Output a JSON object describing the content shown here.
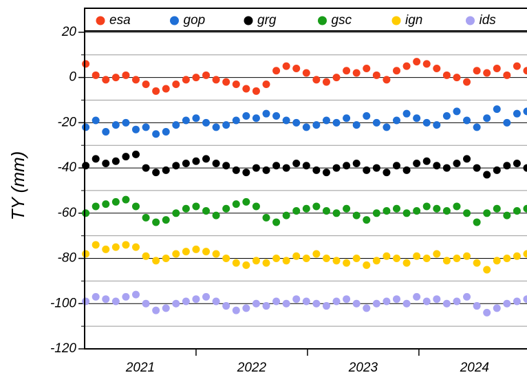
{
  "chart_data": {
    "type": "scatter",
    "ylabel": "TY (mm)",
    "x": [
      2021.01,
      2021.1,
      2021.19,
      2021.28,
      2021.37,
      2021.46,
      2021.55,
      2021.64,
      2021.73,
      2021.82,
      2021.91,
      2022.0,
      2022.09,
      2022.18,
      2022.27,
      2022.36,
      2022.45,
      2022.54,
      2022.63,
      2022.72,
      2022.81,
      2022.9,
      2022.99,
      2023.08,
      2023.17,
      2023.26,
      2023.35,
      2023.44,
      2023.53,
      2023.62,
      2023.71,
      2023.8,
      2023.89,
      2023.98,
      2024.07,
      2024.16,
      2024.25,
      2024.34,
      2024.43,
      2024.52,
      2024.61,
      2024.7,
      2024.79,
      2024.88,
      2024.97
    ],
    "series": [
      {
        "name": "esa",
        "color": "#f5401c",
        "values": [
          6,
          1,
          -1,
          0,
          1,
          -1,
          -3,
          -6,
          -5,
          -3,
          -1,
          0,
          1,
          -1,
          -2,
          -3,
          -5,
          -6,
          -3,
          3,
          5,
          4,
          2,
          -1,
          -2,
          0,
          3,
          2,
          4,
          1,
          -1,
          3,
          5,
          7,
          6,
          4,
          1,
          0,
          -2,
          3,
          2,
          4,
          1,
          5,
          3
        ]
      },
      {
        "name": "gop",
        "color": "#1f6fd6",
        "values": [
          -22,
          -19,
          -24,
          -21,
          -20,
          -23,
          -22,
          -25,
          -24,
          -21,
          -19,
          -18,
          -20,
          -22,
          -21,
          -19,
          -17,
          -18,
          -16,
          -17,
          -19,
          -20,
          -22,
          -21,
          -19,
          -20,
          -18,
          -21,
          -17,
          -20,
          -22,
          -19,
          -16,
          -18,
          -20,
          -21,
          -17,
          -15,
          -19,
          -22,
          -18,
          -14,
          -20,
          -16,
          -15
        ]
      },
      {
        "name": "grg",
        "color": "#000000",
        "values": [
          -39,
          -36,
          -38,
          -37,
          -35,
          -34,
          -40,
          -42,
          -41,
          -39,
          -38,
          -37,
          -36,
          -38,
          -39,
          -41,
          -42,
          -40,
          -41,
          -39,
          -40,
          -38,
          -39,
          -41,
          -42,
          -40,
          -39,
          -38,
          -41,
          -40,
          -42,
          -39,
          -41,
          -38,
          -37,
          -39,
          -40,
          -38,
          -36,
          -40,
          -43,
          -41,
          -39,
          -38,
          -40
        ]
      },
      {
        "name": "gsc",
        "color": "#189c18",
        "values": [
          -60,
          -57,
          -56,
          -55,
          -54,
          -57,
          -62,
          -64,
          -63,
          -60,
          -58,
          -57,
          -59,
          -61,
          -58,
          -56,
          -55,
          -57,
          -62,
          -64,
          -61,
          -59,
          -58,
          -57,
          -59,
          -60,
          -58,
          -61,
          -63,
          -60,
          -59,
          -58,
          -60,
          -59,
          -57,
          -58,
          -59,
          -57,
          -60,
          -64,
          -60,
          -58,
          -61,
          -59,
          -58
        ]
      },
      {
        "name": "ign",
        "color": "#ffcc00",
        "values": [
          -78,
          -74,
          -76,
          -75,
          -74,
          -75,
          -79,
          -81,
          -80,
          -78,
          -77,
          -76,
          -77,
          -78,
          -80,
          -82,
          -83,
          -81,
          -82,
          -80,
          -81,
          -79,
          -80,
          -78,
          -80,
          -81,
          -82,
          -80,
          -83,
          -81,
          -79,
          -80,
          -82,
          -79,
          -80,
          -78,
          -81,
          -80,
          -79,
          -82,
          -85,
          -81,
          -80,
          -79,
          -78
        ]
      },
      {
        "name": "ids",
        "color": "#a8a2f2",
        "values": [
          -99,
          -97,
          -98,
          -99,
          -97,
          -96,
          -100,
          -103,
          -102,
          -100,
          -99,
          -98,
          -97,
          -99,
          -101,
          -103,
          -102,
          -100,
          -101,
          -99,
          -100,
          -98,
          -99,
          -100,
          -101,
          -99,
          -98,
          -100,
          -102,
          -100,
          -99,
          -98,
          -100,
          -97,
          -99,
          -98,
          -100,
          -99,
          -97,
          -101,
          -104,
          -102,
          -100,
          -99,
          -98
        ]
      }
    ],
    "xlim": [
      2021,
      2024.97
    ],
    "xticks": [
      {
        "value": 2021.5,
        "label": "2021"
      },
      {
        "value": 2022.5,
        "label": "2022"
      },
      {
        "value": 2023.5,
        "label": "2023"
      },
      {
        "value": 2024.5,
        "label": "2024"
      }
    ],
    "xmajorticks": [
      2022,
      2023,
      2024
    ],
    "ylim": [
      -120,
      30
    ],
    "yticks": [
      20,
      0,
      -20,
      -40,
      -60,
      -80,
      -100,
      -120
    ],
    "yminorticks": [
      10,
      -10,
      -30,
      -50,
      -70,
      -90,
      -110
    ],
    "grid": true
  }
}
